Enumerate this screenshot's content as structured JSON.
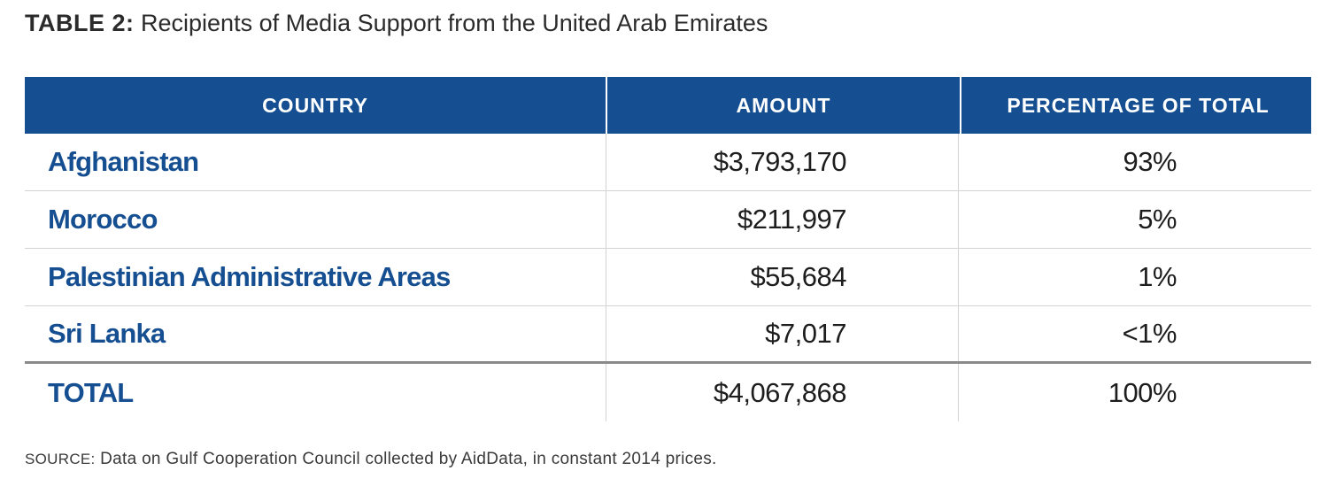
{
  "caption": {
    "label": "TABLE 2:",
    "text": "Recipients of Media Support from the United Arab Emirates"
  },
  "table": {
    "headers": [
      "COUNTRY",
      "AMOUNT",
      "PERCENTAGE OF TOTAL"
    ],
    "rows": [
      [
        "Afghanistan",
        "$3,793,170",
        "93%"
      ],
      [
        "Morocco",
        "$211,997",
        "5%"
      ],
      [
        "Palestinian Administrative Areas",
        "$55,684",
        "1%"
      ],
      [
        "Sri Lanka",
        "$7,017",
        "<1%"
      ]
    ],
    "total": [
      "TOTAL",
      "$4,067,868",
      "100%"
    ]
  },
  "source": {
    "label": "SOURCE:",
    "text": "Data on Gulf Cooperation Council collected by AidData, in constant 2014 prices."
  },
  "colors": {
    "header_bg": "#154f91",
    "country_text": "#154f91"
  }
}
